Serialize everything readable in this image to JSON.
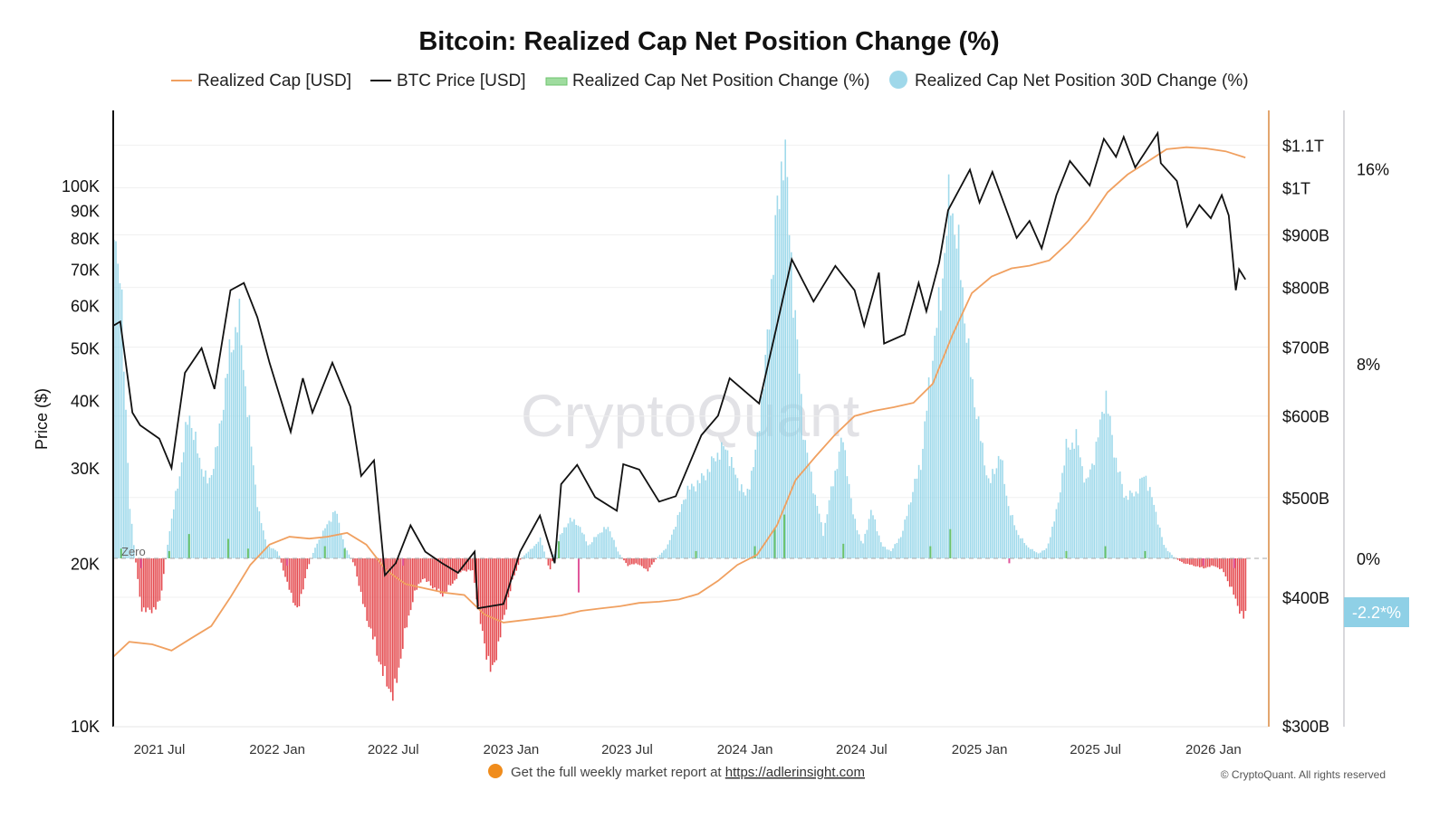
{
  "chart_data": {
    "type": "line",
    "title": "Bitcoin: Realized Cap Net Position Change (%)",
    "legend": [
      {
        "name": "Realized Cap [USD]",
        "color": "#f0a060",
        "marker": "line"
      },
      {
        "name": "BTC Price [USD]",
        "color": "#111111",
        "marker": "line"
      },
      {
        "name": "Realized Cap Net Position Change (%)",
        "color": "#7fd37f",
        "marker": "bar"
      },
      {
        "name": "Realized Cap Net Position 30D Change (%)",
        "color": "#9fd8ea",
        "marker": "circle"
      }
    ],
    "legend_placement": "top",
    "watermark": "CryptoQuant",
    "xrange": [
      "2021-04-20",
      "2026-03-27"
    ],
    "xticks": [
      {
        "date": "2021-07-01",
        "label": "2021 Jul"
      },
      {
        "date": "2022-01-01",
        "label": "2022 Jan"
      },
      {
        "date": "2022-07-01",
        "label": "2022 Jul"
      },
      {
        "date": "2023-01-01",
        "label": "2023 Jan"
      },
      {
        "date": "2023-07-01",
        "label": "2023 Jul"
      },
      {
        "date": "2024-01-01",
        "label": "2024 Jan"
      },
      {
        "date": "2024-07-01",
        "label": "2024 Jul"
      },
      {
        "date": "2025-01-01",
        "label": "2025 Jan"
      },
      {
        "date": "2025-07-01",
        "label": "2025 Jul"
      },
      {
        "date": "2026-01-01",
        "label": "2026 Jan"
      }
    ],
    "y_price": {
      "label": "Price ($)",
      "scale": "log",
      "range": [
        10000,
        150000
      ],
      "ticks": [
        {
          "v": 10000,
          "label": "10K"
        },
        {
          "v": 20000,
          "label": "20K"
        },
        {
          "v": 30000,
          "label": "30K"
        },
        {
          "v": 40000,
          "label": "40K"
        },
        {
          "v": 50000,
          "label": "50K"
        },
        {
          "v": 60000,
          "label": "60K"
        },
        {
          "v": 70000,
          "label": "70K"
        },
        {
          "v": 80000,
          "label": "80K"
        },
        {
          "v": 90000,
          "label": "90K"
        },
        {
          "v": 100000,
          "label": "100K"
        }
      ]
    },
    "y_realized_cap": {
      "scale": "log",
      "range_billion": [
        300,
        1180
      ],
      "ticks": [
        {
          "v": 300,
          "label": "$300B"
        },
        {
          "v": 400,
          "label": "$400B"
        },
        {
          "v": 500,
          "label": "$500B"
        },
        {
          "v": 600,
          "label": "$600B"
        },
        {
          "v": 700,
          "label": "$700B"
        },
        {
          "v": 800,
          "label": "$800B"
        },
        {
          "v": 900,
          "label": "$900B"
        },
        {
          "v": 1000,
          "label": "$1T"
        },
        {
          "v": 1100,
          "label": "$1.1T"
        }
      ]
    },
    "y_percent": {
      "scale": "linear",
      "range": [
        -6.9,
        18.4
      ],
      "ticks": [
        {
          "v": 0,
          "label": "0%"
        },
        {
          "v": 8,
          "label": "8%"
        },
        {
          "v": 16,
          "label": "16%"
        }
      ],
      "zero_label": "Zero",
      "current_value": -2.2,
      "current_label": "-2.2*%"
    },
    "grid": true,
    "btc_price": [
      [
        "2021-04-20",
        55000
      ],
      [
        "2021-05-01",
        56000
      ],
      [
        "2021-05-20",
        38000
      ],
      [
        "2021-06-01",
        36000
      ],
      [
        "2021-07-01",
        34000
      ],
      [
        "2021-07-20",
        30000
      ],
      [
        "2021-08-10",
        45000
      ],
      [
        "2021-09-05",
        50000
      ],
      [
        "2021-09-25",
        42000
      ],
      [
        "2021-10-20",
        64000
      ],
      [
        "2021-11-10",
        66000
      ],
      [
        "2021-12-01",
        57000
      ],
      [
        "2021-12-20",
        47000
      ],
      [
        "2022-01-22",
        35000
      ],
      [
        "2022-02-10",
        44000
      ],
      [
        "2022-02-25",
        38000
      ],
      [
        "2022-03-28",
        47000
      ],
      [
        "2022-04-25",
        39000
      ],
      [
        "2022-05-12",
        29000
      ],
      [
        "2022-06-01",
        31000
      ],
      [
        "2022-06-18",
        19000
      ],
      [
        "2022-07-05",
        20000
      ],
      [
        "2022-07-28",
        23500
      ],
      [
        "2022-08-20",
        21000
      ],
      [
        "2022-09-15",
        20000
      ],
      [
        "2022-10-10",
        19200
      ],
      [
        "2022-11-05",
        21000
      ],
      [
        "2022-11-10",
        16500
      ],
      [
        "2022-12-20",
        16800
      ],
      [
        "2023-01-15",
        21000
      ],
      [
        "2023-02-15",
        24500
      ],
      [
        "2023-03-10",
        20000
      ],
      [
        "2023-03-20",
        28000
      ],
      [
        "2023-04-14",
        30400
      ],
      [
        "2023-05-12",
        26500
      ],
      [
        "2023-06-15",
        25000
      ],
      [
        "2023-06-25",
        30500
      ],
      [
        "2023-07-20",
        29800
      ],
      [
        "2023-08-20",
        26000
      ],
      [
        "2023-09-15",
        26600
      ],
      [
        "2023-10-25",
        34500
      ],
      [
        "2023-11-20",
        37500
      ],
      [
        "2023-12-08",
        44000
      ],
      [
        "2024-01-23",
        39500
      ],
      [
        "2024-02-15",
        52000
      ],
      [
        "2024-03-14",
        73000
      ],
      [
        "2024-04-17",
        61000
      ],
      [
        "2024-05-21",
        71000
      ],
      [
        "2024-06-20",
        64000
      ],
      [
        "2024-07-05",
        55000
      ],
      [
        "2024-07-28",
        69000
      ],
      [
        "2024-08-05",
        51000
      ],
      [
        "2024-09-06",
        53000
      ],
      [
        "2024-09-28",
        66000
      ],
      [
        "2024-10-10",
        58500
      ],
      [
        "2024-10-30",
        72000
      ],
      [
        "2024-11-13",
        90000
      ],
      [
        "2024-12-17",
        107000
      ],
      [
        "2025-01-01",
        93000
      ],
      [
        "2025-01-21",
        106000
      ],
      [
        "2025-02-28",
        80000
      ],
      [
        "2025-03-20",
        86000
      ],
      [
        "2025-04-08",
        76500
      ],
      [
        "2025-05-01",
        96000
      ],
      [
        "2025-05-22",
        111000
      ],
      [
        "2025-06-22",
        100000
      ],
      [
        "2025-07-14",
        122000
      ],
      [
        "2025-08-02",
        113000
      ],
      [
        "2025-08-14",
        123000
      ],
      [
        "2025-09-01",
        108000
      ],
      [
        "2025-10-06",
        125000
      ],
      [
        "2025-10-11",
        110000
      ],
      [
        "2025-11-05",
        102000
      ],
      [
        "2025-11-21",
        84000
      ],
      [
        "2025-12-10",
        92000
      ],
      [
        "2025-12-28",
        87000
      ],
      [
        "2026-01-14",
        96000
      ],
      [
        "2026-01-25",
        88000
      ],
      [
        "2026-02-05",
        64000
      ],
      [
        "2026-02-10",
        70000
      ],
      [
        "2026-02-20",
        67000
      ]
    ],
    "realized_cap_billion": [
      [
        "2021-04-20",
        350
      ],
      [
        "2021-05-15",
        362
      ],
      [
        "2021-06-20",
        360
      ],
      [
        "2021-07-20",
        355
      ],
      [
        "2021-08-20",
        365
      ],
      [
        "2021-09-20",
        375
      ],
      [
        "2021-10-20",
        400
      ],
      [
        "2021-11-20",
        430
      ],
      [
        "2021-12-20",
        450
      ],
      [
        "2022-01-20",
        458
      ],
      [
        "2022-02-20",
        456
      ],
      [
        "2022-03-20",
        458
      ],
      [
        "2022-04-20",
        462
      ],
      [
        "2022-05-20",
        450
      ],
      [
        "2022-06-20",
        425
      ],
      [
        "2022-07-20",
        412
      ],
      [
        "2022-08-20",
        408
      ],
      [
        "2022-09-20",
        404
      ],
      [
        "2022-10-20",
        402
      ],
      [
        "2022-11-20",
        385
      ],
      [
        "2022-12-20",
        378
      ],
      [
        "2023-01-20",
        380
      ],
      [
        "2023-02-20",
        382
      ],
      [
        "2023-03-20",
        384
      ],
      [
        "2023-04-20",
        388
      ],
      [
        "2023-05-20",
        390
      ],
      [
        "2023-06-20",
        392
      ],
      [
        "2023-07-20",
        395
      ],
      [
        "2023-08-20",
        396
      ],
      [
        "2023-09-20",
        398
      ],
      [
        "2023-10-20",
        403
      ],
      [
        "2023-11-20",
        415
      ],
      [
        "2023-12-20",
        430
      ],
      [
        "2024-01-20",
        440
      ],
      [
        "2024-02-20",
        470
      ],
      [
        "2024-03-20",
        520
      ],
      [
        "2024-04-20",
        548
      ],
      [
        "2024-05-20",
        575
      ],
      [
        "2024-06-20",
        600
      ],
      [
        "2024-07-20",
        607
      ],
      [
        "2024-08-20",
        612
      ],
      [
        "2024-09-20",
        618
      ],
      [
        "2024-10-20",
        645
      ],
      [
        "2024-11-20",
        720
      ],
      [
        "2024-12-20",
        790
      ],
      [
        "2025-01-20",
        820
      ],
      [
        "2025-02-20",
        835
      ],
      [
        "2025-03-20",
        840
      ],
      [
        "2025-04-20",
        850
      ],
      [
        "2025-05-20",
        885
      ],
      [
        "2025-06-20",
        930
      ],
      [
        "2025-07-20",
        990
      ],
      [
        "2025-08-20",
        1030
      ],
      [
        "2025-09-20",
        1060
      ],
      [
        "2025-10-20",
        1090
      ],
      [
        "2025-11-20",
        1095
      ],
      [
        "2025-12-20",
        1092
      ],
      [
        "2026-01-20",
        1085
      ],
      [
        "2026-02-20",
        1070
      ]
    ],
    "net_position_30d_change_pct": [
      [
        "2021-04-20",
        14
      ],
      [
        "2021-05-01",
        11
      ],
      [
        "2021-05-15",
        2
      ],
      [
        "2021-06-01",
        -2
      ],
      [
        "2021-06-15",
        -2.2
      ],
      [
        "2021-07-01",
        -1.8
      ],
      [
        "2021-07-15",
        1
      ],
      [
        "2021-08-01",
        3.5
      ],
      [
        "2021-08-15",
        6
      ],
      [
        "2021-09-01",
        4
      ],
      [
        "2021-09-15",
        3
      ],
      [
        "2021-10-01",
        5
      ],
      [
        "2021-10-15",
        8
      ],
      [
        "2021-11-01",
        10
      ],
      [
        "2021-11-15",
        6
      ],
      [
        "2021-12-01",
        2
      ],
      [
        "2021-12-15",
        0.5
      ],
      [
        "2022-01-01",
        0.3
      ],
      [
        "2022-01-15",
        -1
      ],
      [
        "2022-02-01",
        -2.2
      ],
      [
        "2022-02-15",
        -0.5
      ],
      [
        "2022-03-01",
        0.5
      ],
      [
        "2022-03-15",
        1.2
      ],
      [
        "2022-04-01",
        2
      ],
      [
        "2022-04-15",
        0.5
      ],
      [
        "2022-05-01",
        -0.3
      ],
      [
        "2022-05-15",
        -2
      ],
      [
        "2022-06-01",
        -3.5
      ],
      [
        "2022-06-15",
        -4.8
      ],
      [
        "2022-07-01",
        -5.7
      ],
      [
        "2022-07-15",
        -3.5
      ],
      [
        "2022-08-01",
        -1.5
      ],
      [
        "2022-08-15",
        -0.8
      ],
      [
        "2022-09-01",
        -1.2
      ],
      [
        "2022-09-15",
        -1.5
      ],
      [
        "2022-10-01",
        -1
      ],
      [
        "2022-10-15",
        -0.5
      ],
      [
        "2022-11-01",
        -0.5
      ],
      [
        "2022-11-15",
        -3
      ],
      [
        "2022-12-01",
        -4.8
      ],
      [
        "2022-12-15",
        -3
      ],
      [
        "2023-01-01",
        -1
      ],
      [
        "2023-01-15",
        0
      ],
      [
        "2023-02-01",
        0.4
      ],
      [
        "2023-02-15",
        0.8
      ],
      [
        "2023-03-01",
        -0.5
      ],
      [
        "2023-03-15",
        0.8
      ],
      [
        "2023-04-01",
        1.6
      ],
      [
        "2023-04-15",
        1.4
      ],
      [
        "2023-05-01",
        0.5
      ],
      [
        "2023-05-15",
        1
      ],
      [
        "2023-06-01",
        1.3
      ],
      [
        "2023-06-15",
        0.3
      ],
      [
        "2023-07-01",
        -0.3
      ],
      [
        "2023-07-15",
        -0.2
      ],
      [
        "2023-08-01",
        -0.5
      ],
      [
        "2023-08-15",
        0
      ],
      [
        "2023-09-01",
        0.5
      ],
      [
        "2023-09-15",
        1.5
      ],
      [
        "2023-10-01",
        2.8
      ],
      [
        "2023-10-15",
        3
      ],
      [
        "2023-11-01",
        3.5
      ],
      [
        "2023-11-15",
        4.2
      ],
      [
        "2023-12-01",
        4.6
      ],
      [
        "2023-12-15",
        3.5
      ],
      [
        "2024-01-01",
        2.5
      ],
      [
        "2024-01-15",
        4
      ],
      [
        "2024-02-01",
        8
      ],
      [
        "2024-02-15",
        13
      ],
      [
        "2024-03-01",
        17.2
      ],
      [
        "2024-03-15",
        11
      ],
      [
        "2024-04-01",
        5
      ],
      [
        "2024-04-15",
        3
      ],
      [
        "2024-05-01",
        1
      ],
      [
        "2024-05-15",
        3
      ],
      [
        "2024-06-01",
        5
      ],
      [
        "2024-06-15",
        2
      ],
      [
        "2024-07-01",
        0.5
      ],
      [
        "2024-07-15",
        2
      ],
      [
        "2024-08-01",
        0.5
      ],
      [
        "2024-08-15",
        0.3
      ],
      [
        "2024-09-01",
        1
      ],
      [
        "2024-09-15",
        2.5
      ],
      [
        "2024-10-01",
        4
      ],
      [
        "2024-10-15",
        7.5
      ],
      [
        "2024-11-01",
        11
      ],
      [
        "2024-11-15",
        15
      ],
      [
        "2024-12-01",
        12
      ],
      [
        "2024-12-15",
        8
      ],
      [
        "2025-01-01",
        5
      ],
      [
        "2025-01-15",
        3
      ],
      [
        "2025-02-01",
        4.3
      ],
      [
        "2025-02-15",
        2
      ],
      [
        "2025-03-01",
        1
      ],
      [
        "2025-03-15",
        0.5
      ],
      [
        "2025-04-01",
        0.2
      ],
      [
        "2025-04-15",
        0.4
      ],
      [
        "2025-05-01",
        2
      ],
      [
        "2025-05-15",
        4.5
      ],
      [
        "2025-06-01",
        4.9
      ],
      [
        "2025-06-15",
        3
      ],
      [
        "2025-07-01",
        4.5
      ],
      [
        "2025-07-15",
        6.8
      ],
      [
        "2025-08-01",
        4
      ],
      [
        "2025-08-15",
        2.5
      ],
      [
        "2025-09-01",
        2.7
      ],
      [
        "2025-09-15",
        3.5
      ],
      [
        "2025-10-01",
        2
      ],
      [
        "2025-10-15",
        0.5
      ],
      [
        "2025-11-01",
        0
      ],
      [
        "2025-11-15",
        -0.2
      ],
      [
        "2025-12-01",
        -0.3
      ],
      [
        "2025-12-15",
        -0.4
      ],
      [
        "2026-01-01",
        -0.3
      ],
      [
        "2026-01-15",
        -0.5
      ],
      [
        "2026-02-01",
        -1.5
      ],
      [
        "2026-02-15",
        -2.5
      ],
      [
        "2026-02-20",
        -2.2
      ]
    ],
    "net_position_change_pct": [
      [
        "2021-05-01",
        0.4
      ],
      [
        "2021-06-01",
        -0.4
      ],
      [
        "2021-07-15",
        0.3
      ],
      [
        "2021-08-15",
        1.0
      ],
      [
        "2021-10-15",
        0.8
      ],
      [
        "2021-11-15",
        0.4
      ],
      [
        "2022-01-15",
        -0.3
      ],
      [
        "2022-03-15",
        0.5
      ],
      [
        "2022-04-15",
        0.4
      ],
      [
        "2022-06-15",
        -0.5
      ],
      [
        "2022-07-15",
        -0.3
      ],
      [
        "2023-03-15",
        0.7
      ],
      [
        "2023-04-15",
        -1.4
      ],
      [
        "2023-10-15",
        0.3
      ],
      [
        "2024-01-15",
        0.5
      ],
      [
        "2024-02-15",
        1.2
      ],
      [
        "2024-03-01",
        1.8
      ],
      [
        "2024-06-01",
        0.6
      ],
      [
        "2024-10-15",
        0.5
      ],
      [
        "2024-11-15",
        1.2
      ],
      [
        "2025-02-15",
        -0.2
      ],
      [
        "2025-05-15",
        0.3
      ],
      [
        "2025-07-15",
        0.5
      ],
      [
        "2025-09-15",
        0.3
      ],
      [
        "2025-12-15",
        -0.3
      ],
      [
        "2026-02-01",
        -0.4
      ]
    ]
  },
  "footer": {
    "text": "Get the full weekly market report at ",
    "link": "https://adlerinsight.com",
    "copyright": "© CryptoQuant. All rights reserved"
  }
}
